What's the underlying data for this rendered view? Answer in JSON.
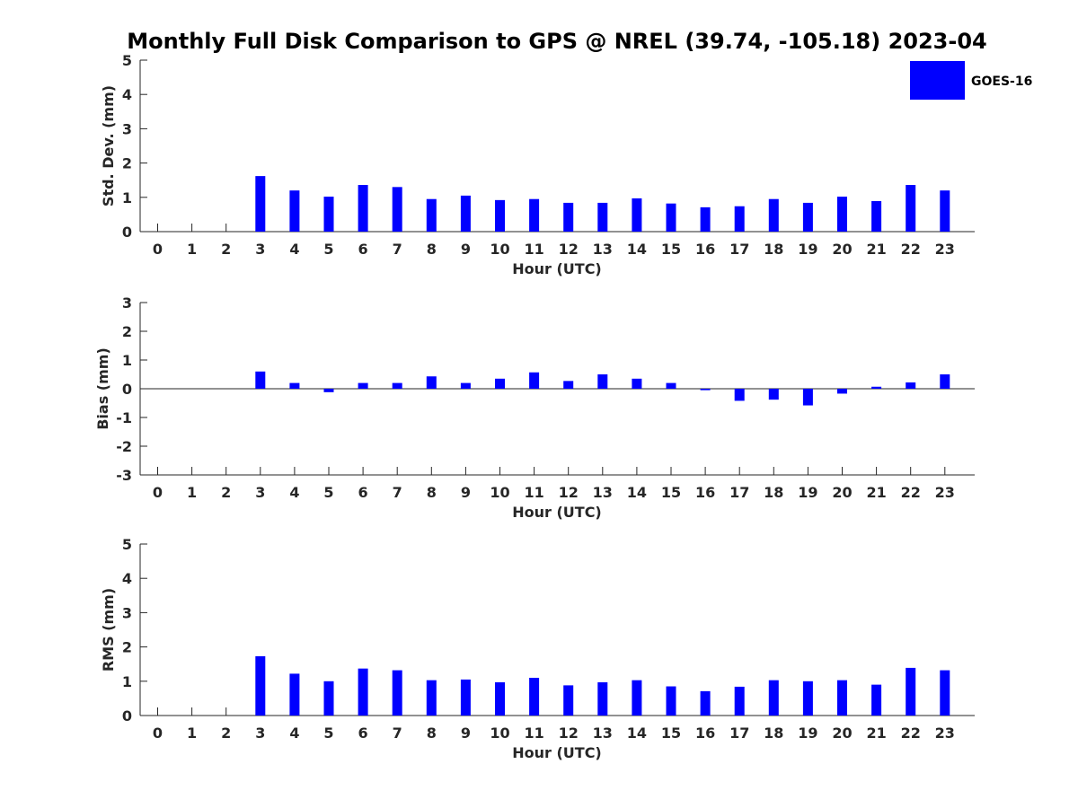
{
  "title": "Monthly Full Disk Comparison to GPS @ NREL (39.74, -105.18) 2023-04",
  "legend": {
    "label": "GOES-16",
    "color": "#0000ff",
    "placement": "top-right"
  },
  "chart_data": [
    {
      "type": "bar",
      "name": "std",
      "categories": [
        "0",
        "1",
        "2",
        "3",
        "4",
        "5",
        "6",
        "7",
        "8",
        "9",
        "10",
        "11",
        "12",
        "13",
        "14",
        "15",
        "16",
        "17",
        "18",
        "19",
        "20",
        "21",
        "22",
        "23"
      ],
      "series": [
        {
          "name": "GOES-16",
          "color": "#0000ff",
          "values": [
            null,
            null,
            null,
            1.62,
            1.2,
            1.02,
            1.36,
            1.3,
            0.95,
            1.05,
            0.92,
            0.95,
            0.84,
            0.84,
            0.97,
            0.82,
            0.71,
            0.74,
            0.95,
            0.84,
            1.02,
            0.89,
            1.36,
            1.2
          ]
        }
      ],
      "xlabel": "Hour (UTC)",
      "ylabel": "Std. Dev. (mm)",
      "ylim": [
        0,
        5
      ],
      "yticks": [
        0,
        1,
        2,
        3,
        4,
        5
      ],
      "grid": false
    },
    {
      "type": "bar",
      "name": "bias",
      "categories": [
        "0",
        "1",
        "2",
        "3",
        "4",
        "5",
        "6",
        "7",
        "8",
        "9",
        "10",
        "11",
        "12",
        "13",
        "14",
        "15",
        "16",
        "17",
        "18",
        "19",
        "20",
        "21",
        "22",
        "23"
      ],
      "series": [
        {
          "name": "GOES-16",
          "color": "#0000ff",
          "values": [
            null,
            null,
            null,
            0.6,
            0.2,
            -0.12,
            0.2,
            0.2,
            0.43,
            0.2,
            0.35,
            0.57,
            0.27,
            0.5,
            0.35,
            0.2,
            -0.05,
            -0.42,
            -0.38,
            -0.58,
            -0.17,
            0.07,
            0.22,
            0.5
          ]
        }
      ],
      "xlabel": "Hour (UTC)",
      "ylabel": "Bias (mm)",
      "ylim": [
        -3,
        3
      ],
      "yticks": [
        -3,
        -2,
        -1,
        0,
        1,
        2,
        3
      ],
      "grid": false
    },
    {
      "type": "bar",
      "name": "rms",
      "categories": [
        "0",
        "1",
        "2",
        "3",
        "4",
        "5",
        "6",
        "7",
        "8",
        "9",
        "10",
        "11",
        "12",
        "13",
        "14",
        "15",
        "16",
        "17",
        "18",
        "19",
        "20",
        "21",
        "22",
        "23"
      ],
      "series": [
        {
          "name": "GOES-16",
          "color": "#0000ff",
          "values": [
            null,
            null,
            null,
            1.73,
            1.22,
            1.0,
            1.37,
            1.32,
            1.03,
            1.05,
            0.97,
            1.1,
            0.88,
            0.97,
            1.03,
            0.85,
            0.71,
            0.84,
            1.03,
            1.0,
            1.03,
            0.9,
            1.39,
            1.32
          ]
        }
      ],
      "xlabel": "Hour (UTC)",
      "ylabel": "RMS (mm)",
      "ylim": [
        0,
        5
      ],
      "yticks": [
        0,
        1,
        2,
        3,
        4,
        5
      ],
      "grid": false
    }
  ]
}
